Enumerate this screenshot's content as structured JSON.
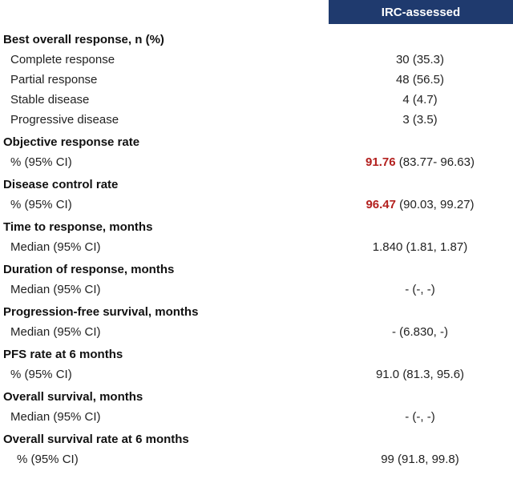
{
  "header": {
    "column_title": "IRC-assessed"
  },
  "colors": {
    "header_bg": "#1f3a6e",
    "highlight": "#b3201e"
  },
  "rows": {
    "bor_title": "Best overall response, n (%)",
    "cr_label": "Complete response",
    "cr_value": "30 (35.3)",
    "pr_label": "Partial response",
    "pr_value": "48 (56.5)",
    "sd_label": "Stable disease",
    "sd_value": "4 (4.7)",
    "pd_label": "Progressive disease",
    "pd_value": "3 (3.5)",
    "orr_title": "Objective response rate",
    "orr_label": "% (95% CI)",
    "orr_value_bold": "91.76",
    "orr_value_rest": " (83.77- 96.63)",
    "dcr_title": "Disease control rate",
    "dcr_label": "% (95% CI)",
    "dcr_value_bold": "96.47",
    "dcr_value_rest": " (90.03, 99.27)",
    "ttr_title": "Time to response, months",
    "ttr_label": "Median (95% CI)",
    "ttr_value": "1.840 (1.81, 1.87)",
    "dor_title": "Duration of response, months",
    "dor_label": "Median (95% CI)",
    "dor_value": "- (-, -)",
    "pfs_title": "Progression-free survival, months",
    "pfs_label": "Median (95% CI)",
    "pfs_value": "- (6.830, -)",
    "pfs6_title": "PFS rate at 6 months",
    "pfs6_label": "% (95% CI)",
    "pfs6_value": "91.0 (81.3, 95.6)",
    "os_title": "Overall survival, months",
    "os_label": "Median (95% CI)",
    "os_value": "- (-, -)",
    "os6_title": "Overall survival rate at 6 months",
    "os6_label": "% (95% CI)",
    "os6_value": "99 (91.8, 99.8)"
  }
}
